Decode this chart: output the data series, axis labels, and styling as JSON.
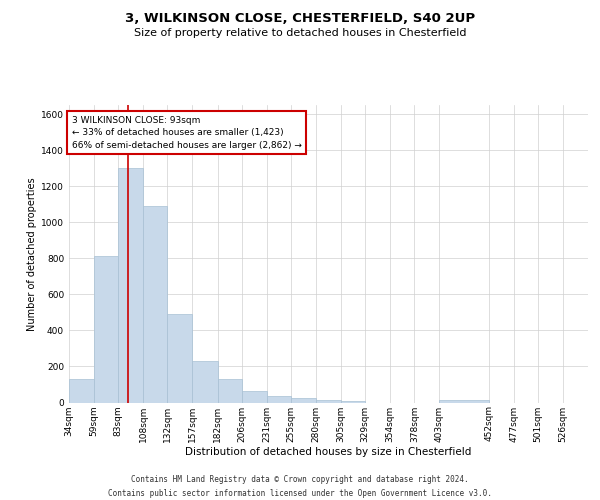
{
  "title1": "3, WILKINSON CLOSE, CHESTERFIELD, S40 2UP",
  "title2": "Size of property relative to detached houses in Chesterfield",
  "xlabel": "Distribution of detached houses by size in Chesterfield",
  "ylabel": "Number of detached properties",
  "bin_labels": [
    "34sqm",
    "59sqm",
    "83sqm",
    "108sqm",
    "132sqm",
    "157sqm",
    "182sqm",
    "206sqm",
    "231sqm",
    "255sqm",
    "280sqm",
    "305sqm",
    "329sqm",
    "354sqm",
    "378sqm",
    "403sqm",
    "452sqm",
    "477sqm",
    "501sqm",
    "526sqm"
  ],
  "bin_edges": [
    34,
    59,
    83,
    108,
    132,
    157,
    182,
    206,
    231,
    255,
    280,
    305,
    329,
    354,
    378,
    403,
    452,
    477,
    501,
    526,
    551
  ],
  "values": [
    130,
    810,
    1300,
    1090,
    490,
    230,
    130,
    65,
    35,
    25,
    15,
    10,
    0,
    0,
    0,
    15,
    0,
    0,
    0,
    0
  ],
  "bar_color": "#c8d9ea",
  "bar_edge_color": "#a8c0d4",
  "grid_color": "#d0d0d0",
  "vline_x": 93,
  "vline_color": "#cc0000",
  "annotation_line1": "3 WILKINSON CLOSE: 93sqm",
  "annotation_line2": "← 33% of detached houses are smaller (1,423)",
  "annotation_line3": "66% of semi-detached houses are larger (2,862) →",
  "annotation_box_color": "#cc0000",
  "ylim": [
    0,
    1650
  ],
  "yticks": [
    0,
    200,
    400,
    600,
    800,
    1000,
    1200,
    1400,
    1600
  ],
  "footer1": "Contains HM Land Registry data © Crown copyright and database right 2024.",
  "footer2": "Contains public sector information licensed under the Open Government Licence v3.0.",
  "bg_color": "#ffffff",
  "title1_fontsize": 9.5,
  "title2_fontsize": 8.0,
  "xlabel_fontsize": 7.5,
  "ylabel_fontsize": 7.0,
  "tick_fontsize": 6.5,
  "annotation_fontsize": 6.5,
  "footer_fontsize": 5.5
}
